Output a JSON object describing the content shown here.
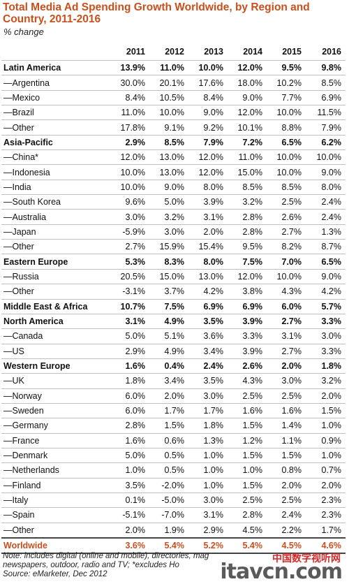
{
  "header": {
    "title": "Total Media Ad Spending Growth Worldwide, by Region and Country, 2011-2016",
    "subtitle": "% change"
  },
  "chart_data": {
    "type": "table",
    "columns": [
      "2011",
      "2012",
      "2013",
      "2014",
      "2015",
      "2016"
    ],
    "rows": [
      {
        "label": "Latin America",
        "kind": "region",
        "values": [
          "13.9%",
          "11.0%",
          "10.0%",
          "12.0%",
          "9.5%",
          "9.8%"
        ]
      },
      {
        "label": "—Argentina",
        "kind": "country",
        "values": [
          "30.0%",
          "20.1%",
          "17.6%",
          "18.0%",
          "10.2%",
          "8.5%"
        ]
      },
      {
        "label": "—Mexico",
        "kind": "country",
        "values": [
          "8.4%",
          "10.5%",
          "8.4%",
          "9.0%",
          "7.7%",
          "6.9%"
        ]
      },
      {
        "label": "—Brazil",
        "kind": "country",
        "values": [
          "11.0%",
          "10.0%",
          "9.0%",
          "12.0%",
          "10.0%",
          "11.5%"
        ]
      },
      {
        "label": "—Other",
        "kind": "country",
        "values": [
          "17.8%",
          "9.1%",
          "9.2%",
          "10.1%",
          "8.8%",
          "7.9%"
        ]
      },
      {
        "label": "Asia-Pacific",
        "kind": "region",
        "values": [
          "2.9%",
          "8.5%",
          "7.9%",
          "7.2%",
          "6.5%",
          "6.2%"
        ]
      },
      {
        "label": "—China*",
        "kind": "country",
        "values": [
          "12.0%",
          "13.0%",
          "12.0%",
          "11.0%",
          "10.0%",
          "10.0%"
        ]
      },
      {
        "label": "—Indonesia",
        "kind": "country",
        "values": [
          "10.0%",
          "13.0%",
          "12.0%",
          "15.0%",
          "10.0%",
          "9.0%"
        ]
      },
      {
        "label": "—India",
        "kind": "country",
        "values": [
          "10.0%",
          "9.0%",
          "8.0%",
          "8.5%",
          "8.5%",
          "8.0%"
        ]
      },
      {
        "label": "—South Korea",
        "kind": "country",
        "values": [
          "9.6%",
          "5.0%",
          "3.9%",
          "3.2%",
          "2.5%",
          "2.4%"
        ]
      },
      {
        "label": "—Australia",
        "kind": "country",
        "values": [
          "3.0%",
          "3.2%",
          "3.1%",
          "2.8%",
          "2.6%",
          "2.4%"
        ]
      },
      {
        "label": "—Japan",
        "kind": "country",
        "values": [
          "-5.9%",
          "3.0%",
          "2.0%",
          "2.8%",
          "2.7%",
          "1.3%"
        ]
      },
      {
        "label": "—Other",
        "kind": "country",
        "values": [
          "2.7%",
          "15.9%",
          "15.4%",
          "9.5%",
          "8.2%",
          "8.7%"
        ]
      },
      {
        "label": "Eastern Europe",
        "kind": "region",
        "values": [
          "5.3%",
          "8.3%",
          "8.0%",
          "7.5%",
          "7.0%",
          "6.5%"
        ]
      },
      {
        "label": "—Russia",
        "kind": "country",
        "values": [
          "20.5%",
          "15.0%",
          "13.0%",
          "12.0%",
          "10.0%",
          "9.0%"
        ]
      },
      {
        "label": "—Other",
        "kind": "country",
        "values": [
          "-3.1%",
          "3.7%",
          "4.2%",
          "3.8%",
          "4.3%",
          "4.2%"
        ]
      },
      {
        "label": "Middle East & Africa",
        "kind": "region",
        "values": [
          "10.7%",
          "7.5%",
          "6.9%",
          "6.9%",
          "6.0%",
          "5.7%"
        ]
      },
      {
        "label": "North America",
        "kind": "region",
        "values": [
          "3.1%",
          "4.9%",
          "3.5%",
          "3.9%",
          "2.7%",
          "3.3%"
        ]
      },
      {
        "label": "—Canada",
        "kind": "country",
        "values": [
          "5.0%",
          "5.1%",
          "3.6%",
          "3.3%",
          "3.1%",
          "3.0%"
        ]
      },
      {
        "label": "—US",
        "kind": "country",
        "values": [
          "2.9%",
          "4.9%",
          "3.4%",
          "3.9%",
          "2.7%",
          "3.3%"
        ]
      },
      {
        "label": "Western Europe",
        "kind": "region",
        "values": [
          "1.6%",
          "0.4%",
          "2.4%",
          "2.6%",
          "2.0%",
          "1.8%"
        ]
      },
      {
        "label": "—UK",
        "kind": "country",
        "values": [
          "1.8%",
          "3.4%",
          "3.5%",
          "4.3%",
          "3.0%",
          "3.2%"
        ]
      },
      {
        "label": "—Norway",
        "kind": "country",
        "values": [
          "6.0%",
          "2.0%",
          "3.0%",
          "2.5%",
          "2.5%",
          "2.0%"
        ]
      },
      {
        "label": "—Sweden",
        "kind": "country",
        "values": [
          "6.0%",
          "1.7%",
          "1.7%",
          "1.6%",
          "1.6%",
          "1.5%"
        ]
      },
      {
        "label": "—Germany",
        "kind": "country",
        "values": [
          "2.8%",
          "1.5%",
          "1.8%",
          "1.5%",
          "1.4%",
          "1.0%"
        ]
      },
      {
        "label": "—France",
        "kind": "country",
        "values": [
          "1.6%",
          "0.6%",
          "1.3%",
          "1.2%",
          "1.1%",
          "0.9%"
        ]
      },
      {
        "label": "—Denmark",
        "kind": "country",
        "values": [
          "5.0%",
          "0.5%",
          "1.0%",
          "1.5%",
          "1.5%",
          "1.0%"
        ]
      },
      {
        "label": "—Netherlands",
        "kind": "country",
        "values": [
          "1.0%",
          "0.5%",
          "1.0%",
          "1.0%",
          "0.8%",
          "0.7%"
        ]
      },
      {
        "label": "—Finland",
        "kind": "country",
        "values": [
          "3.5%",
          "-2.0%",
          "1.0%",
          "1.5%",
          "2.0%",
          "2.0%"
        ]
      },
      {
        "label": "—Italy",
        "kind": "country",
        "values": [
          "0.1%",
          "-5.0%",
          "3.0%",
          "2.5%",
          "2.5%",
          "2.3%"
        ]
      },
      {
        "label": "—Spain",
        "kind": "country",
        "values": [
          "-5.1%",
          "-7.0%",
          "3.1%",
          "2.8%",
          "2.4%",
          "2.3%"
        ]
      },
      {
        "label": "—Other",
        "kind": "country",
        "values": [
          "2.0%",
          "1.9%",
          "2.9%",
          "4.5%",
          "2.2%",
          "1.7%"
        ]
      },
      {
        "label": "Worldwide",
        "kind": "world",
        "values": [
          "3.6%",
          "5.4%",
          "5.2%",
          "5.4%",
          "4.5%",
          "4.6%"
        ]
      }
    ]
  },
  "footer": {
    "note_line1": "Note: includes digital (online and mobile), directories, mag",
    "note_line2": "newspapers, outdoor, radio and TV; *excludes Ho",
    "source": "Source: eMarketer, Dec 2012"
  },
  "watermark": {
    "cn_text": "中国数字视听网",
    "logo_text": "itavcn.com"
  },
  "colors": {
    "title": "#c8501e",
    "worldwide": "#c8501e",
    "watermark_red": "#d42a2a",
    "watermark_gray": "#5a5a5a"
  }
}
